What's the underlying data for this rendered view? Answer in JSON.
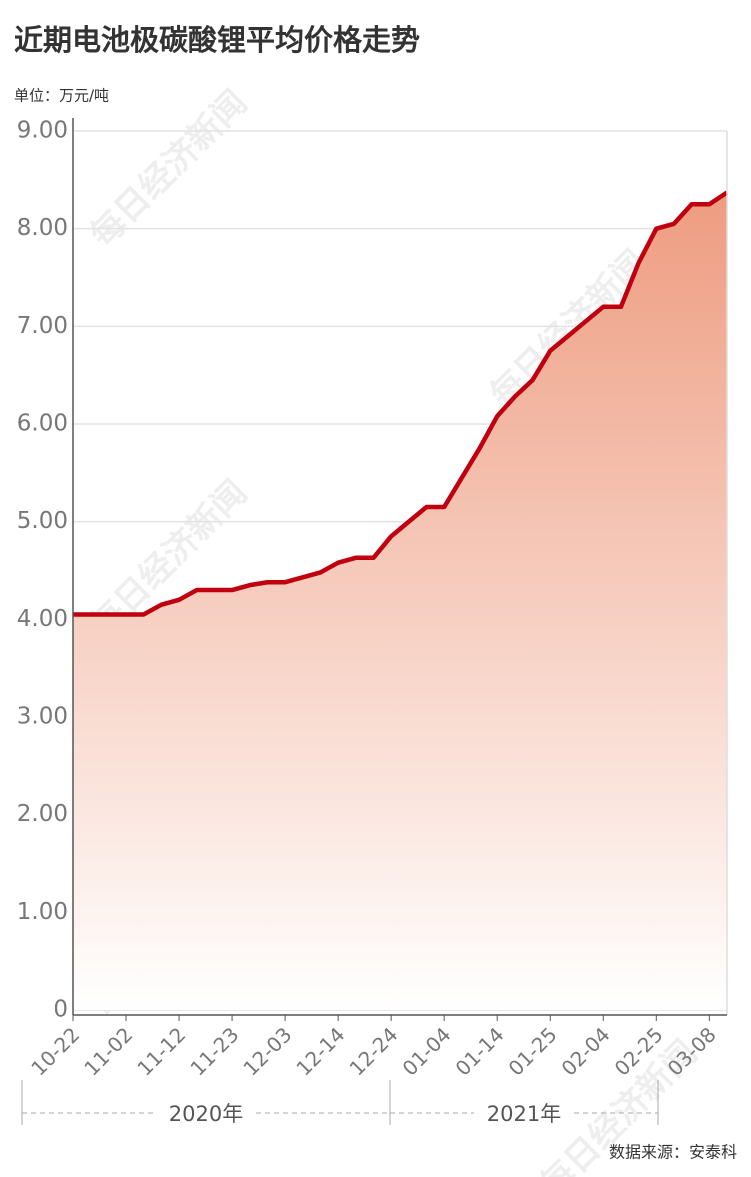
{
  "chart_data": {
    "type": "area-line",
    "title": "近期电池极碳酸锂平均价格走势",
    "unit": "单位：万元/吨",
    "source": "数据来源：安泰科",
    "watermark": "每日经济新闻",
    "categories": [
      "10-22",
      null,
      null,
      "11-02",
      null,
      null,
      "11-12",
      null,
      null,
      "11-23",
      null,
      null,
      "12-03",
      null,
      null,
      "12-14",
      null,
      null,
      "12-24",
      null,
      null,
      "01-04",
      null,
      null,
      "01-14",
      null,
      null,
      "01-25",
      null,
      null,
      "02-04",
      null,
      null,
      "02-25",
      null,
      null,
      "03-08",
      null
    ],
    "values": [
      4.05,
      4.05,
      4.05,
      4.05,
      4.05,
      4.15,
      4.2,
      4.3,
      4.3,
      4.3,
      4.35,
      4.38,
      4.38,
      4.43,
      4.48,
      4.58,
      4.63,
      4.63,
      4.85,
      5.0,
      5.15,
      5.15,
      5.45,
      5.75,
      6.08,
      6.28,
      6.45,
      6.75,
      6.9,
      7.05,
      7.2,
      7.2,
      7.65,
      8.0,
      8.05,
      8.25,
      8.25,
      8.37
    ],
    "color": "#c0000f",
    "groups": [
      "2020年",
      "2021年"
    ],
    "ylim": [
      0,
      9
    ],
    "yticks": [
      {
        "value": 0,
        "label": "0"
      },
      {
        "value": 1,
        "label": "1.00"
      },
      {
        "value": 2,
        "label": "2.00"
      },
      {
        "value": 3,
        "label": "3.00"
      },
      {
        "value": 4,
        "label": "4.00"
      },
      {
        "value": 5,
        "label": "5.00"
      },
      {
        "value": 6,
        "label": "6.00"
      },
      {
        "value": 7,
        "label": "7.00"
      },
      {
        "value": 8,
        "label": "8.00"
      },
      {
        "value": 9,
        "label": "9.00"
      }
    ],
    "grid": true
  }
}
